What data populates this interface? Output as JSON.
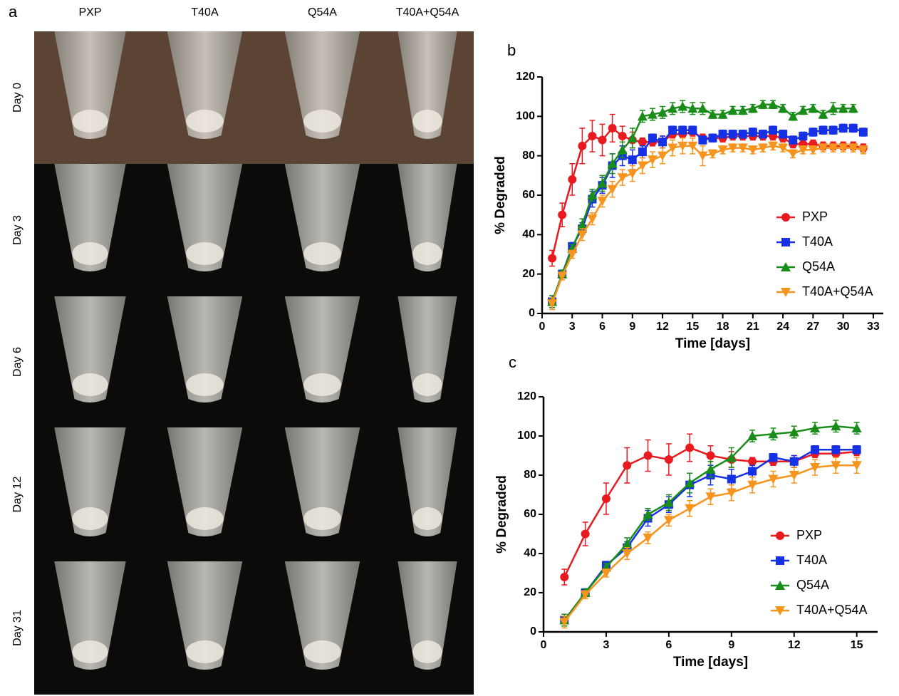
{
  "panel_a": {
    "label": "a",
    "columns": [
      "PXP",
      "T40A",
      "Q54A",
      "T40A+Q54A"
    ],
    "rows": [
      "Day 0",
      "Day 3",
      "Day 6",
      "Day 12",
      "Day 31"
    ]
  },
  "chart_data": [
    {
      "type": "line",
      "label": "b",
      "xlabel": "Time [days]",
      "ylabel": "% Degraded",
      "x": [
        1,
        2,
        3,
        4,
        5,
        6,
        7,
        8,
        9,
        10,
        11,
        12,
        13,
        14,
        15,
        16,
        17,
        18,
        19,
        20,
        21,
        22,
        23,
        24,
        25,
        26,
        27,
        28,
        29,
        30,
        31,
        32
      ],
      "xlim": [
        0,
        34
      ],
      "xticks": [
        0,
        3,
        6,
        9,
        12,
        15,
        18,
        21,
        24,
        27,
        30,
        33
      ],
      "ylim": [
        0,
        120
      ],
      "yticks": [
        0,
        20,
        40,
        60,
        80,
        100,
        120
      ],
      "legend": "lower right",
      "series": [
        {
          "name": "PXP",
          "color": "#e8191f",
          "marker": "circle",
          "values": [
            28,
            50,
            68,
            85,
            90,
            88,
            94,
            90,
            88,
            87,
            87,
            87,
            91,
            91,
            92,
            89,
            89,
            89,
            90,
            90,
            90,
            90,
            90,
            89,
            86,
            86,
            86,
            85,
            85,
            85,
            85,
            84
          ],
          "errors": [
            4,
            6,
            8,
            9,
            8,
            8,
            7,
            5,
            4,
            2,
            2,
            3,
            2,
            2,
            2,
            2,
            2,
            2,
            2,
            2,
            2,
            2,
            2,
            2,
            2,
            2,
            2,
            2,
            2,
            2,
            2,
            2
          ]
        },
        {
          "name": "T40A",
          "color": "#1630e6",
          "marker": "square",
          "values": [
            6,
            20,
            34,
            43,
            58,
            65,
            75,
            80,
            78,
            82,
            89,
            87,
            93,
            93,
            93,
            88,
            89,
            91,
            91,
            91,
            92,
            91,
            93,
            91,
            88,
            90,
            92,
            93,
            93,
            94,
            94,
            92
          ],
          "errors": [
            3,
            2,
            2,
            3,
            4,
            4,
            6,
            5,
            5,
            3,
            2,
            3,
            2,
            2,
            2,
            2,
            2,
            2,
            2,
            2,
            2,
            2,
            2,
            2,
            2,
            2,
            2,
            2,
            2,
            2,
            2,
            2
          ]
        },
        {
          "name": "Q54A",
          "color": "#1a8c1a",
          "marker": "triangle",
          "values": [
            6,
            20,
            33,
            45,
            60,
            66,
            76,
            83,
            89,
            100,
            101,
            102,
            104,
            105,
            104,
            104,
            101,
            101,
            103,
            103,
            104,
            106,
            106,
            104,
            100,
            103,
            104,
            101,
            104,
            104,
            104,
            null
          ],
          "errors": [
            3,
            2,
            2,
            3,
            3,
            4,
            5,
            4,
            5,
            3,
            3,
            3,
            3,
            3,
            3,
            3,
            2,
            2,
            2,
            2,
            2,
            2,
            2,
            2,
            2,
            2,
            2,
            2,
            3,
            2,
            2,
            null
          ]
        },
        {
          "name": "T40A+Q54A",
          "color": "#f7941d",
          "marker": "triangle-down",
          "values": [
            5,
            19,
            30,
            40,
            48,
            57,
            63,
            69,
            71,
            75,
            78,
            80,
            84,
            85,
            85,
            80,
            81,
            83,
            84,
            84,
            83,
            84,
            85,
            84,
            81,
            83,
            83,
            84,
            84,
            84,
            84,
            83
          ],
          "errors": [
            3,
            2,
            2,
            3,
            3,
            3,
            4,
            4,
            4,
            4,
            4,
            4,
            4,
            4,
            4,
            5,
            2,
            2,
            2,
            2,
            2,
            2,
            2,
            2,
            2,
            2,
            2,
            2,
            2,
            2,
            2,
            2
          ]
        }
      ]
    },
    {
      "type": "line",
      "label": "c",
      "xlabel": "Time [days]",
      "ylabel": "% Degraded",
      "x": [
        1,
        2,
        3,
        4,
        5,
        6,
        7,
        8,
        9,
        10,
        11,
        12,
        13,
        14,
        15
      ],
      "xlim": [
        0,
        16
      ],
      "xticks": [
        0,
        3,
        6,
        9,
        12,
        15
      ],
      "ylim": [
        0,
        120
      ],
      "yticks": [
        0,
        20,
        40,
        60,
        80,
        100,
        120
      ],
      "legend": "lower right",
      "series": [
        {
          "name": "PXP",
          "color": "#e8191f",
          "marker": "circle",
          "values": [
            28,
            50,
            68,
            85,
            90,
            88,
            94,
            90,
            88,
            87,
            87,
            87,
            91,
            91,
            92
          ],
          "errors": [
            4,
            6,
            8,
            9,
            8,
            8,
            7,
            5,
            4,
            2,
            2,
            3,
            2,
            2,
            2
          ]
        },
        {
          "name": "T40A",
          "color": "#1630e6",
          "marker": "square",
          "values": [
            6,
            20,
            34,
            43,
            58,
            65,
            75,
            80,
            78,
            82,
            89,
            87,
            93,
            93,
            93
          ],
          "errors": [
            3,
            2,
            2,
            3,
            4,
            4,
            6,
            5,
            5,
            3,
            2,
            3,
            2,
            2,
            2
          ]
        },
        {
          "name": "Q54A",
          "color": "#1a8c1a",
          "marker": "triangle",
          "values": [
            6,
            20,
            33,
            45,
            60,
            66,
            76,
            83,
            89,
            100,
            101,
            102,
            104,
            105,
            104
          ],
          "errors": [
            3,
            2,
            2,
            3,
            3,
            4,
            5,
            4,
            5,
            3,
            3,
            3,
            3,
            3,
            3
          ]
        },
        {
          "name": "T40A+Q54A",
          "color": "#f7941d",
          "marker": "triangle-down",
          "values": [
            5,
            19,
            30,
            40,
            48,
            57,
            63,
            69,
            71,
            75,
            78,
            80,
            84,
            85,
            85
          ],
          "errors": [
            3,
            2,
            2,
            3,
            3,
            3,
            4,
            4,
            4,
            4,
            4,
            4,
            4,
            4,
            4
          ]
        }
      ]
    }
  ]
}
